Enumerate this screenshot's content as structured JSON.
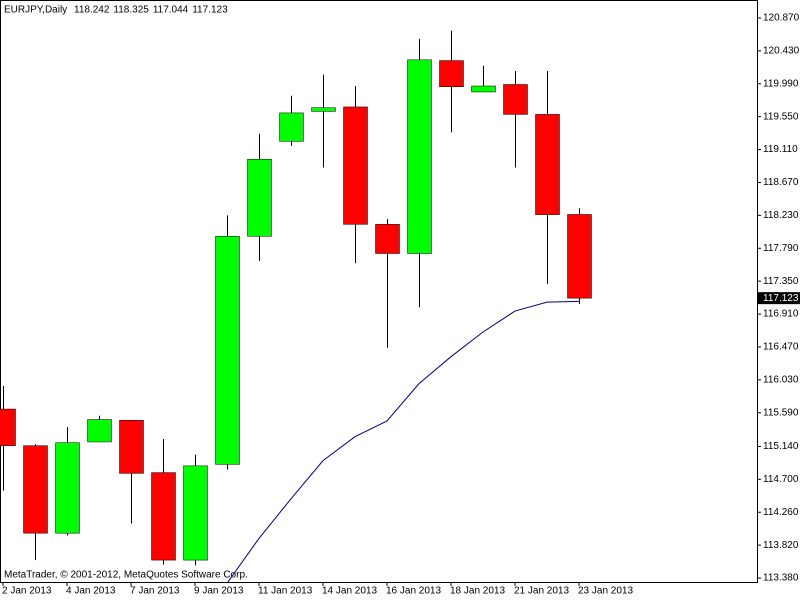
{
  "chart_data": {
    "type": "candlestick",
    "title": "EURJPY,Daily",
    "footer": "MetaTrader, © 2001-2012, MetaQuotes Software Corp.",
    "categories": [
      "2 Jan 2013",
      null,
      "4 Jan 2013",
      null,
      "7 Jan 2013",
      null,
      "9 Jan 2013",
      null,
      "11 Jan 2013",
      null,
      "14 Jan 2013",
      null,
      "16 Jan 2013",
      null,
      "18 Jan 2013",
      null,
      "21 Jan 2013",
      null,
      "23 Jan 2013"
    ],
    "open": [
      115.64,
      115.15,
      113.98,
      115.2,
      115.49,
      114.79,
      113.62,
      114.9,
      117.95,
      119.22,
      119.62,
      119.68,
      118.11,
      117.72,
      120.3,
      119.88,
      119.98,
      119.58,
      118.242
    ],
    "high": [
      115.95,
      115.17,
      115.4,
      115.55,
      115.49,
      115.24,
      115.03,
      118.23,
      119.32,
      119.83,
      120.11,
      119.96,
      118.18,
      120.59,
      120.7,
      120.23,
      120.16,
      120.16,
      118.325
    ],
    "low": [
      114.55,
      113.62,
      113.95,
      115.2,
      114.11,
      113.56,
      113.55,
      114.83,
      117.62,
      119.16,
      118.87,
      117.59,
      116.46,
      117.0,
      119.34,
      119.88,
      118.87,
      117.31,
      117.044
    ],
    "close": [
      115.15,
      113.98,
      115.19,
      115.5,
      114.78,
      113.62,
      114.88,
      117.95,
      118.98,
      119.6,
      119.67,
      118.11,
      117.72,
      120.31,
      119.95,
      119.96,
      119.58,
      118.24,
      117.123
    ],
    "bull_color": "#00ff00",
    "bear_color": "#ff0000",
    "line": {
      "color": "#000080",
      "values": [
        null,
        null,
        null,
        null,
        null,
        null,
        null,
        113.31,
        113.91,
        114.44,
        114.95,
        115.27,
        115.48,
        115.98,
        116.34,
        116.67,
        116.95,
        117.07,
        117.08
      ]
    },
    "ylim": [
      113.327,
      121.11
    ],
    "yticks": [
      {
        "value": 120.87,
        "label": "120.870"
      },
      {
        "value": 120.43,
        "label": "120.430"
      },
      {
        "value": 119.99,
        "label": "119.990"
      },
      {
        "value": 119.55,
        "label": "119.550"
      },
      {
        "value": 119.11,
        "label": "119.110"
      },
      {
        "value": 118.67,
        "label": "118.670"
      },
      {
        "value": 118.23,
        "label": "118.230"
      },
      {
        "value": 117.79,
        "label": "117.790"
      },
      {
        "value": 117.35,
        "label": "117.350"
      },
      {
        "value": 116.91,
        "label": "116.910"
      },
      {
        "value": 116.47,
        "label": "116.470"
      },
      {
        "value": 116.03,
        "label": "116.030"
      },
      {
        "value": 115.59,
        "label": "115.590"
      },
      {
        "value": 115.14,
        "label": "115.140"
      },
      {
        "value": 114.7,
        "label": "114.700"
      },
      {
        "value": 114.26,
        "label": "114.260"
      },
      {
        "value": 113.82,
        "label": "113.820"
      },
      {
        "value": 113.38,
        "label": "113.380"
      }
    ]
  }
}
